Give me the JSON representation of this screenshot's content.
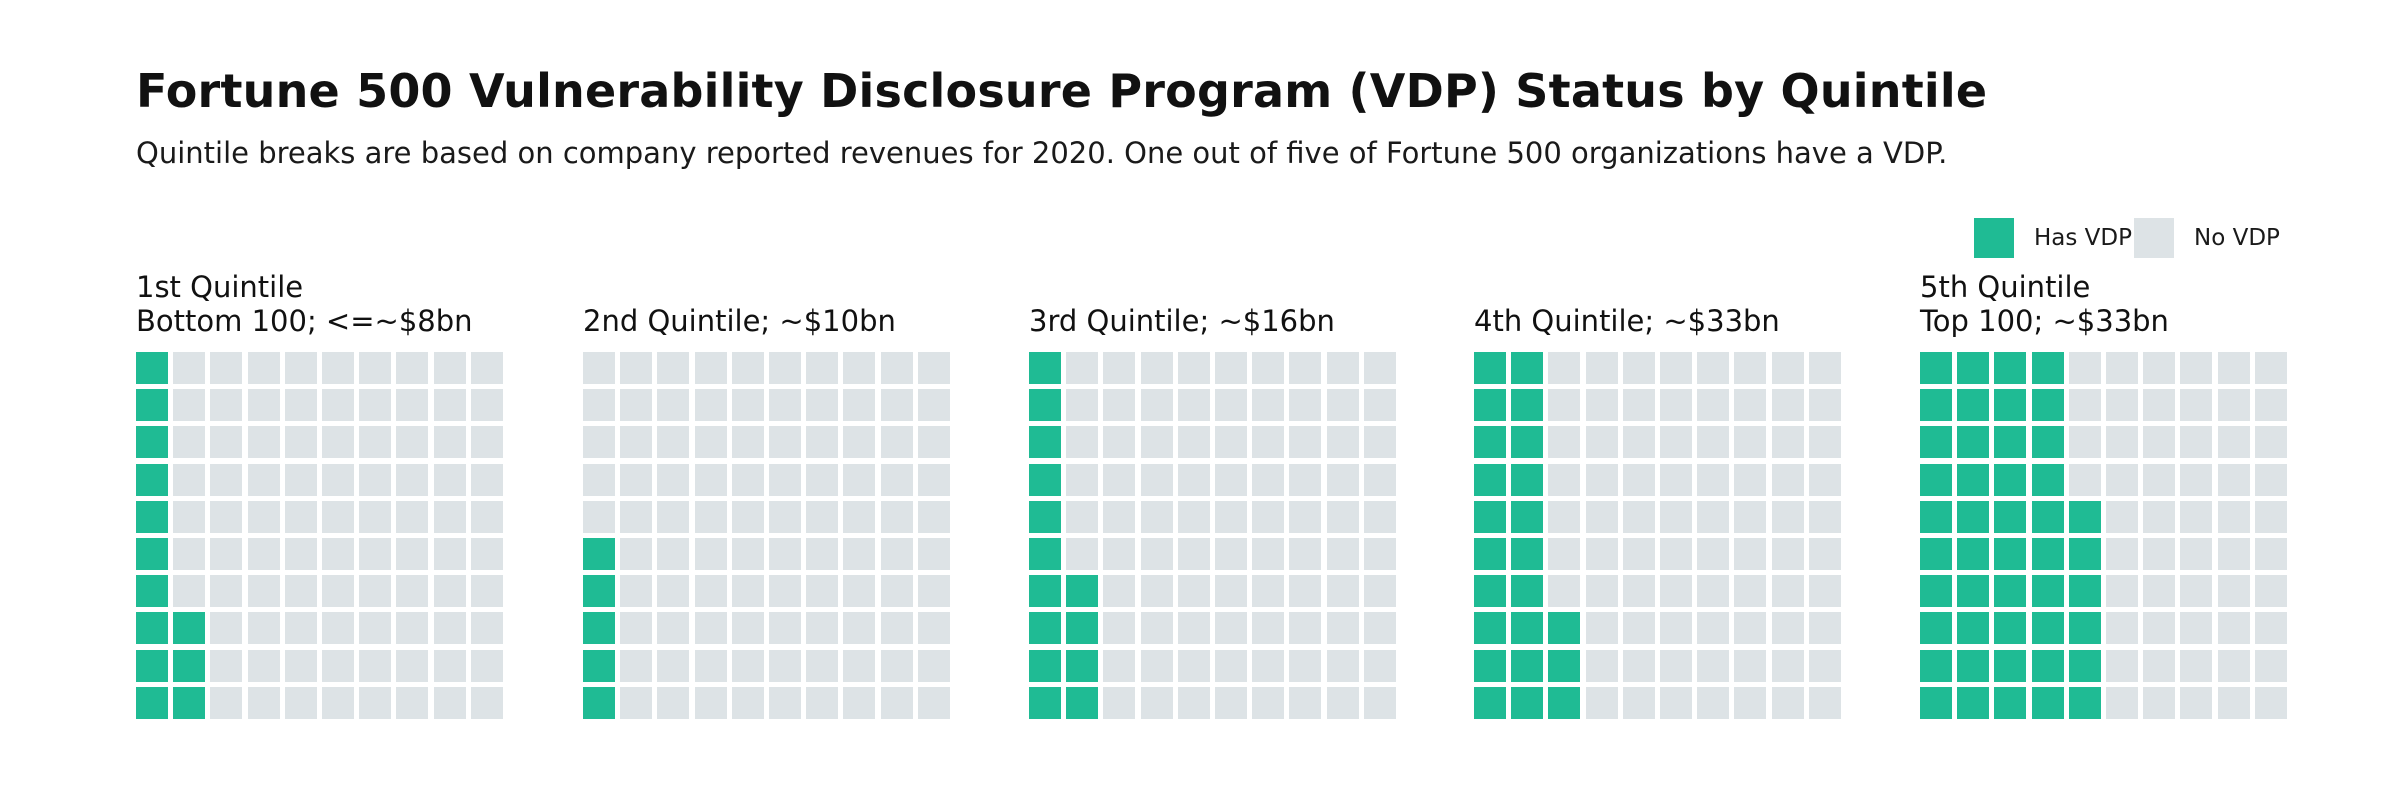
{
  "title": "Fortune 500 Vulnerability Disclosure Program (VDP) Status by Quintile",
  "subtitle": "Quintile breaks are based on company reported revenues for 2020. One out of five of Fortune 500 organizations have a VDP.",
  "legend": {
    "has_label": "Has VDP",
    "no_label": "No VDP"
  },
  "colors": {
    "has": "#1fbb94",
    "no": "#dde3e6"
  },
  "chart_data": {
    "type": "waffle",
    "grid": {
      "rows": 10,
      "cols": 10,
      "fill_order": "column-wise from left, bottom to top"
    },
    "series": [
      {
        "name": "Has VDP"
      },
      {
        "name": "No VDP"
      }
    ],
    "panels": [
      {
        "line1": "1st Quintile",
        "line2": "Bottom 100; <=~$8bn",
        "has_vdp": 13,
        "total": 100
      },
      {
        "line1": "",
        "line2": "2nd Quintile; ~$10bn",
        "has_vdp": 5,
        "total": 100
      },
      {
        "line1": "",
        "line2": "3rd Quintile; ~$16bn",
        "has_vdp": 14,
        "total": 100
      },
      {
        "line1": "",
        "line2": "4th Quintile; ~$33bn",
        "has_vdp": 23,
        "total": 100
      },
      {
        "line1": "5th Quintile",
        "line2": "Top 100; ~$33bn",
        "has_vdp": 46,
        "total": 100
      }
    ]
  }
}
